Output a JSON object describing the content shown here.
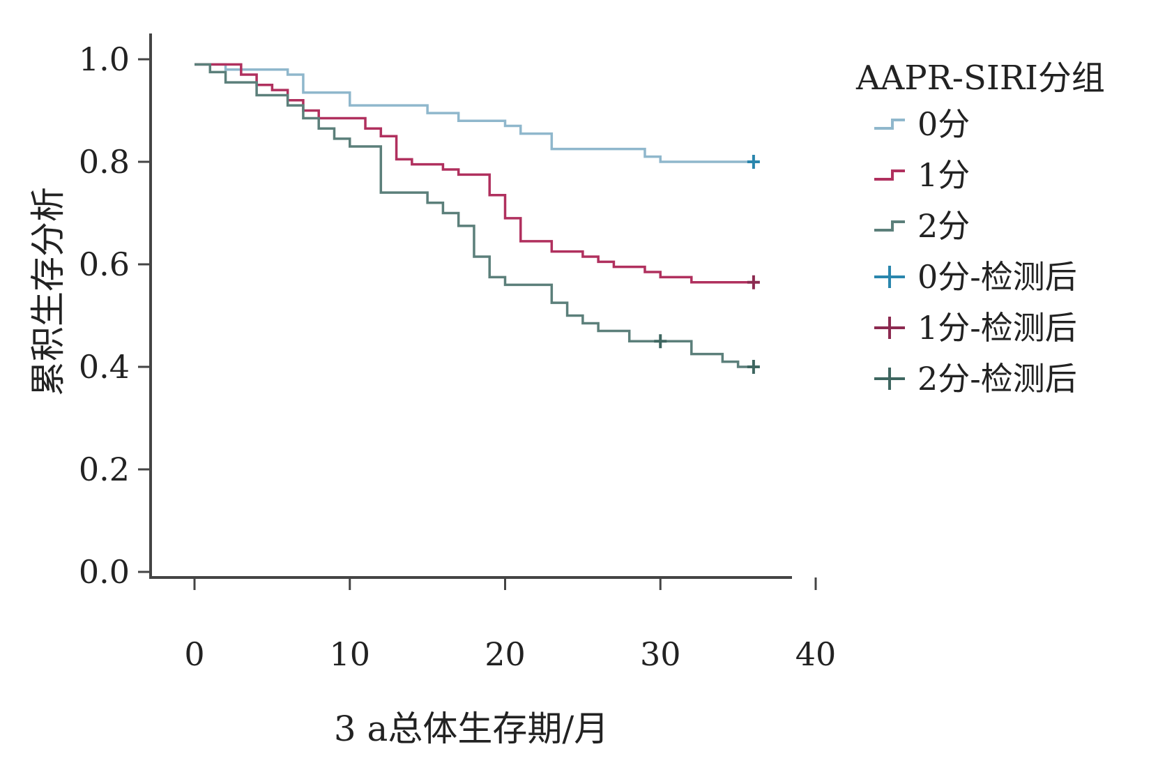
{
  "chart_data": {
    "type": "line",
    "step": true,
    "xlabel": "3 a总体生存期/月",
    "ylabel": "累积生存分析",
    "xlim": [
      0,
      40
    ],
    "ylim": [
      0.0,
      1.0
    ],
    "x_ticks": [
      "0",
      "10",
      "20",
      "30",
      "40"
    ],
    "y_ticks": [
      "0.0",
      "0.2",
      "0.4",
      "0.6",
      "0.8",
      "1.0"
    ],
    "grid": false,
    "legend_position": "right",
    "legend_title": "AAPR-SIRI分组",
    "legend_entries": [
      {
        "label": "0分",
        "symbol": "step",
        "color": "#8fb7cc"
      },
      {
        "label": "1分",
        "symbol": "step",
        "color": "#b0305e"
      },
      {
        "label": "2分",
        "symbol": "step",
        "color": "#5b7f7a"
      },
      {
        "label": "0分-检测后",
        "symbol": "plus",
        "color": "#2a86ad"
      },
      {
        "label": "1分-检测后",
        "symbol": "plus",
        "color": "#8c2a50"
      },
      {
        "label": "2分-检测后",
        "symbol": "plus",
        "color": "#3e6660"
      }
    ],
    "series": [
      {
        "name": "0分",
        "color": "#8fb7cc",
        "censor_color": "#2a86ad",
        "points": [
          [
            0,
            0.99
          ],
          [
            2,
            0.98
          ],
          [
            6,
            0.97
          ],
          [
            7,
            0.935
          ],
          [
            10,
            0.91
          ],
          [
            15,
            0.895
          ],
          [
            17,
            0.88
          ],
          [
            20,
            0.87
          ],
          [
            21,
            0.855
          ],
          [
            23,
            0.825
          ],
          [
            29,
            0.81
          ],
          [
            30,
            0.8
          ],
          [
            36,
            0.8
          ]
        ],
        "censored": [
          [
            36,
            0.8
          ]
        ]
      },
      {
        "name": "1分",
        "color": "#b0305e",
        "censor_color": "#8c2a50",
        "points": [
          [
            0,
            0.99
          ],
          [
            3,
            0.97
          ],
          [
            4,
            0.95
          ],
          [
            5,
            0.94
          ],
          [
            6,
            0.92
          ],
          [
            7,
            0.9
          ],
          [
            8,
            0.885
          ],
          [
            11,
            0.865
          ],
          [
            12,
            0.85
          ],
          [
            13,
            0.805
          ],
          [
            14,
            0.795
          ],
          [
            16,
            0.785
          ],
          [
            17,
            0.775
          ],
          [
            19,
            0.735
          ],
          [
            20,
            0.69
          ],
          [
            21,
            0.645
          ],
          [
            23,
            0.625
          ],
          [
            25,
            0.615
          ],
          [
            26,
            0.605
          ],
          [
            27,
            0.595
          ],
          [
            29,
            0.585
          ],
          [
            30,
            0.575
          ],
          [
            32,
            0.565
          ],
          [
            36,
            0.565
          ]
        ],
        "censored": [
          [
            36,
            0.565
          ]
        ]
      },
      {
        "name": "2分",
        "color": "#5b7f7a",
        "censor_color": "#3e6660",
        "points": [
          [
            0,
            0.99
          ],
          [
            1,
            0.975
          ],
          [
            2,
            0.955
          ],
          [
            4,
            0.93
          ],
          [
            6,
            0.91
          ],
          [
            7,
            0.885
          ],
          [
            8,
            0.865
          ],
          [
            9,
            0.845
          ],
          [
            10,
            0.83
          ],
          [
            12,
            0.74
          ],
          [
            15,
            0.72
          ],
          [
            16,
            0.7
          ],
          [
            17,
            0.675
          ],
          [
            18,
            0.615
          ],
          [
            19,
            0.575
          ],
          [
            20,
            0.56
          ],
          [
            23,
            0.525
          ],
          [
            24,
            0.5
          ],
          [
            25,
            0.485
          ],
          [
            26,
            0.47
          ],
          [
            28,
            0.45
          ],
          [
            32,
            0.425
          ],
          [
            34,
            0.41
          ],
          [
            35,
            0.4
          ],
          [
            36,
            0.4
          ]
        ],
        "censored": [
          [
            36,
            0.4
          ],
          [
            30,
            0.45
          ]
        ]
      }
    ]
  }
}
